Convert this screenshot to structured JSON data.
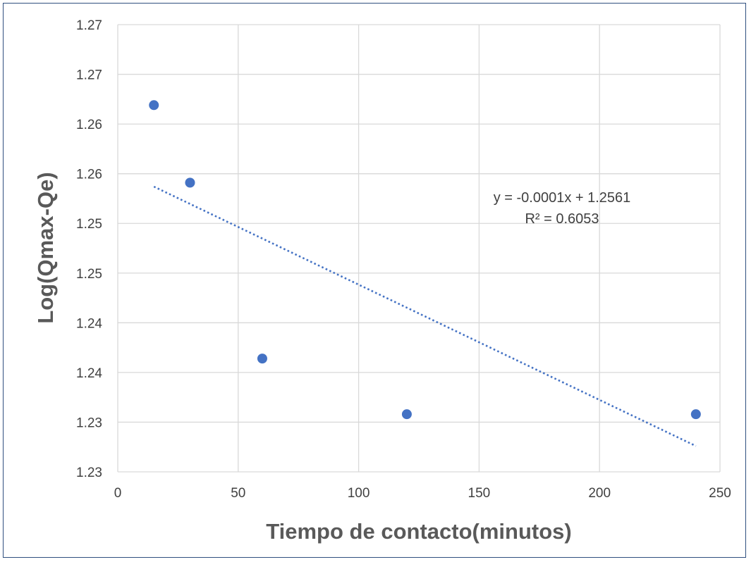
{
  "chart_data": {
    "type": "scatter",
    "xlabel": "Tiempo de contacto(minutos)",
    "ylabel": "Log(Qmax-Qe)",
    "xlim": [
      0,
      250
    ],
    "ylim": [
      1.2275,
      1.2725
    ],
    "x_ticks": [
      0,
      50,
      100,
      150,
      200,
      250
    ],
    "y_ticks": [
      {
        "value": 1.2275,
        "label": "1.23"
      },
      {
        "value": 1.2325,
        "label": "1.23"
      },
      {
        "value": 1.2375,
        "label": "1.24"
      },
      {
        "value": 1.2425,
        "label": "1.24"
      },
      {
        "value": 1.2475,
        "label": "1.25"
      },
      {
        "value": 1.2525,
        "label": "1.25"
      },
      {
        "value": 1.2575,
        "label": "1.26"
      },
      {
        "value": 1.2625,
        "label": "1.26"
      },
      {
        "value": 1.2675,
        "label": "1.27"
      },
      {
        "value": 1.2725,
        "label": "1.27"
      }
    ],
    "grid": true,
    "series": [
      {
        "x": [
          15,
          30,
          60,
          120,
          240
        ],
        "y": [
          1.2644,
          1.2566,
          1.2389,
          1.2333,
          1.2333
        ],
        "color": "#4472c4"
      }
    ],
    "trendline": {
      "type": "linear",
      "x_range": [
        15,
        240
      ],
      "y_start": 1.2562,
      "y_end": 1.2301,
      "color": "#4472c4",
      "style": "dotted",
      "equation": "y = -0.0001x + 1.2561",
      "r_squared": "R² = 0.6053"
    }
  }
}
